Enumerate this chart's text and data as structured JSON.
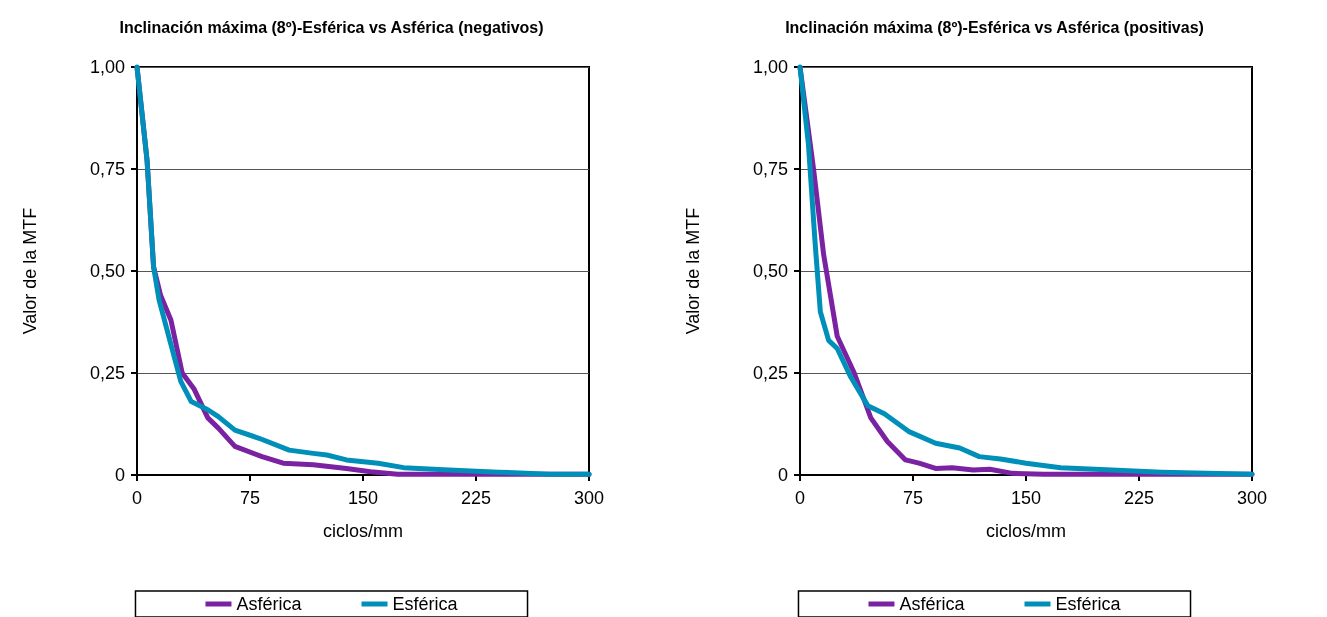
{
  "chart_data": [
    {
      "type": "line",
      "title": "Inclinación máxima (8º)-Esférica vs Asférica (negativos)",
      "xlabel": "ciclos/mm",
      "ylabel": "Valor de la MTF",
      "xlim": [
        0,
        300
      ],
      "xticks": [
        0,
        75,
        150,
        225,
        300
      ],
      "ylim": [
        0,
        1
      ],
      "yticks": [
        {
          "value": 0,
          "label": "0"
        },
        {
          "value": 0.25,
          "label": "0,25"
        },
        {
          "value": 0.5,
          "label": "0,50"
        },
        {
          "value": 0.75,
          "label": "0,75"
        },
        {
          "value": 1,
          "label": "1,00"
        }
      ],
      "grid": "y",
      "legend": "bottom",
      "marker": "none",
      "line_style": "solid",
      "series": [
        {
          "name": "Asférica",
          "color": "#7b22a2",
          "x": [
            0,
            6.7,
            11,
            15.7,
            22.5,
            30,
            38,
            47,
            54,
            65,
            83,
            97,
            117,
            139,
            155,
            173,
            218,
            300
          ],
          "values": [
            1.0,
            0.77,
            0.51,
            0.44,
            0.38,
            0.25,
            0.21,
            0.14,
            0.115,
            0.07,
            0.045,
            0.029,
            0.025,
            0.016,
            0.008,
            0.002,
            0.002,
            0.002
          ]
        },
        {
          "name": "Esférica",
          "color": "#008fb8",
          "x": [
            0,
            6.7,
            11,
            14.6,
            22.5,
            29,
            36,
            47,
            54,
            65,
            81,
            101,
            117,
            126,
            139,
            160,
            177,
            207,
            240,
            274,
            300
          ],
          "values": [
            1.0,
            0.77,
            0.51,
            0.43,
            0.32,
            0.23,
            0.18,
            0.16,
            0.143,
            0.11,
            0.09,
            0.061,
            0.053,
            0.049,
            0.037,
            0.029,
            0.018,
            0.012,
            0.007,
            0.002,
            0.002
          ]
        }
      ]
    },
    {
      "type": "line",
      "title": "Inclinación máxima (8º)-Esférica vs Asférica (positivas)",
      "xlabel": "ciclos/mm",
      "ylabel": "Valor de la MTF",
      "xlim": [
        0,
        300
      ],
      "xticks": [
        0,
        75,
        150,
        225,
        300
      ],
      "ylim": [
        0,
        1
      ],
      "yticks": [
        {
          "value": 0,
          "label": "0"
        },
        {
          "value": 0.25,
          "label": "0,25"
        },
        {
          "value": 0.5,
          "label": "0,50"
        },
        {
          "value": 0.75,
          "label": "0,75"
        },
        {
          "value": 1,
          "label": "1,00"
        }
      ],
      "grid": "y",
      "legend": "bottom",
      "marker": "none",
      "line_style": "solid",
      "series": [
        {
          "name": "Asférica",
          "color": "#7b22a2",
          "x": [
            0,
            9,
            15.7,
            24.7,
            36,
            47,
            58,
            70,
            79,
            90,
            101,
            115,
            126,
            141,
            162,
            300
          ],
          "values": [
            1.0,
            0.75,
            0.54,
            0.34,
            0.25,
            0.14,
            0.082,
            0.037,
            0.029,
            0.016,
            0.018,
            0.012,
            0.014,
            0.004,
            0.002,
            0.002
          ]
        },
        {
          "name": "Esférica",
          "color": "#008fb8",
          "x": [
            0,
            5.6,
            10,
            13.5,
            19,
            24.7,
            33.7,
            45,
            56,
            72,
            90,
            106,
            119,
            133,
            150,
            173,
            207,
            240,
            300
          ],
          "values": [
            1.0,
            0.81,
            0.57,
            0.4,
            0.33,
            0.31,
            0.24,
            0.17,
            0.15,
            0.107,
            0.078,
            0.066,
            0.045,
            0.039,
            0.029,
            0.018,
            0.012,
            0.007,
            0.002
          ]
        }
      ]
    }
  ]
}
